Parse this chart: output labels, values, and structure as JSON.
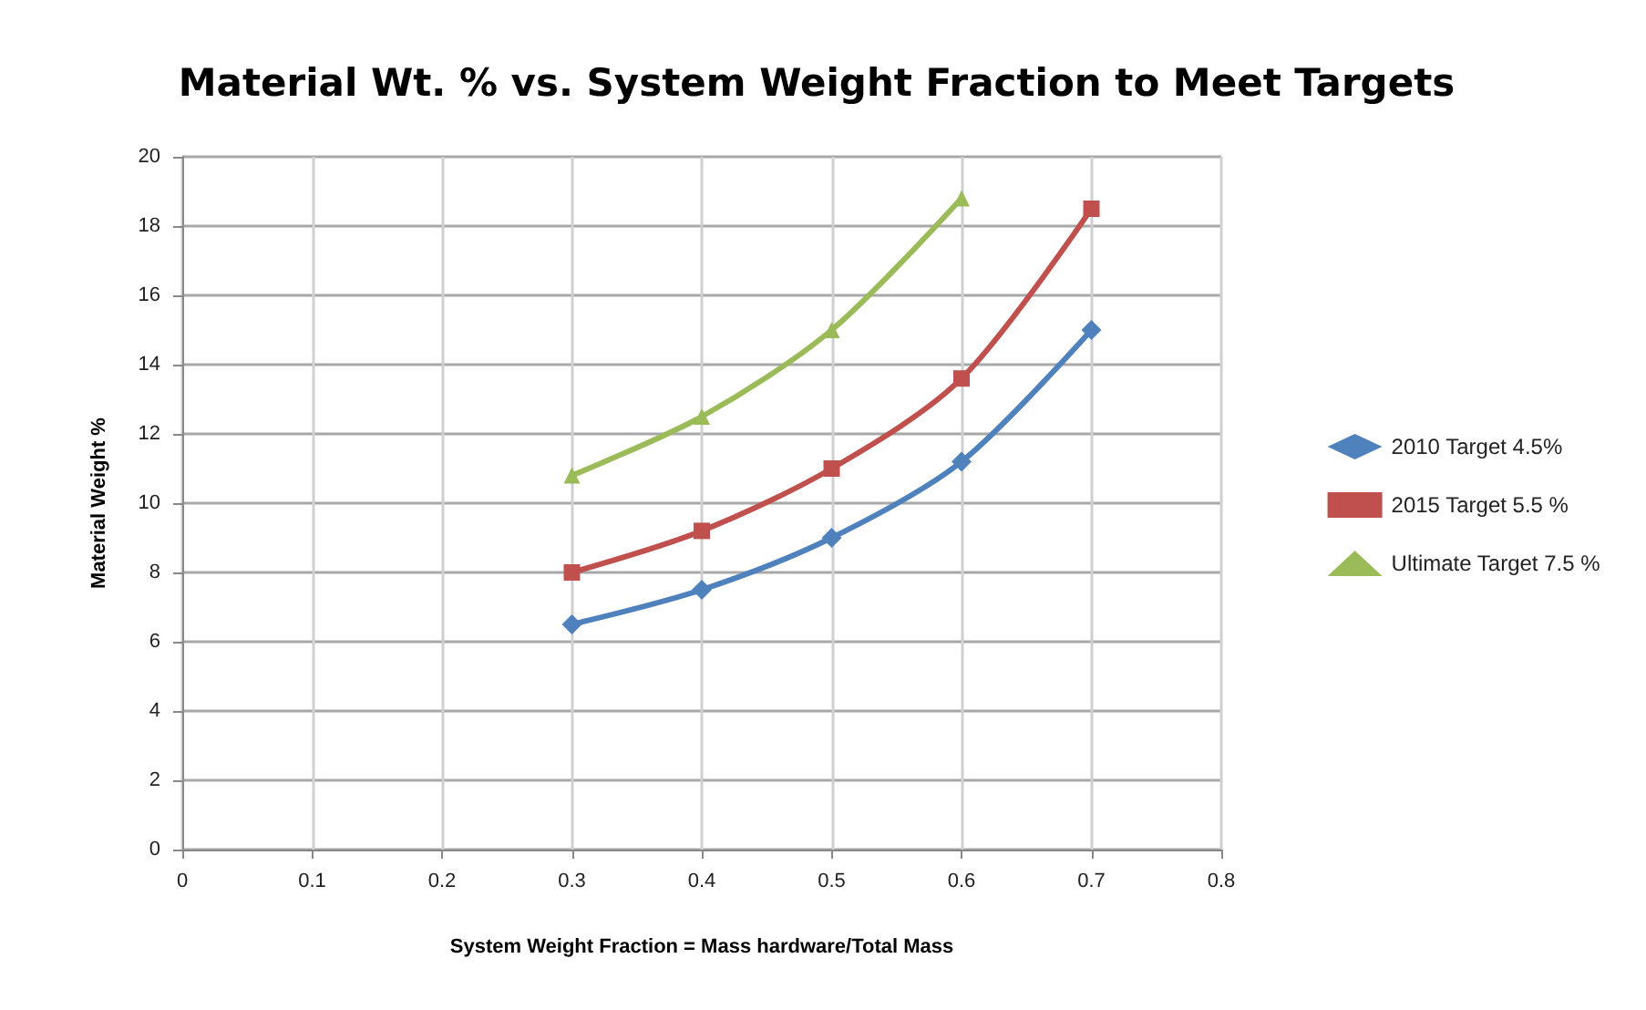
{
  "chart_data": {
    "type": "line",
    "title": "Material Wt. % vs. System Weight Fraction to Meet Targets",
    "xlabel": "System Weight Fraction = Mass hardware/Total Mass",
    "ylabel": "Material Weight %",
    "x": [
      0.3,
      0.4,
      0.5,
      0.6,
      0.7
    ],
    "series": [
      {
        "name": "2010 Target 4.5%",
        "color": "#4f81bd",
        "marker": "diamond",
        "values": [
          6.5,
          7.5,
          9,
          11.2,
          15
        ]
      },
      {
        "name": "2015 Target 5.5 %",
        "color": "#c0504d",
        "marker": "square",
        "values": [
          8,
          9.2,
          11,
          13.6,
          18.5
        ]
      },
      {
        "name": "Ultimate Target 7.5 %",
        "color": "#9bbb59",
        "marker": "triangle",
        "values": [
          10.8,
          12.5,
          15,
          18.8,
          null
        ]
      }
    ],
    "xlim": [
      0,
      0.8
    ],
    "xticks": [
      0,
      0.1,
      0.2,
      0.3,
      0.4,
      0.5,
      0.6,
      0.7,
      0.8
    ],
    "ylim": [
      0,
      20
    ],
    "yticks": [
      0,
      2,
      4,
      6,
      8,
      10,
      12,
      14,
      16,
      18,
      20
    ],
    "grid": true,
    "legend": "right",
    "line_style": "solid"
  }
}
